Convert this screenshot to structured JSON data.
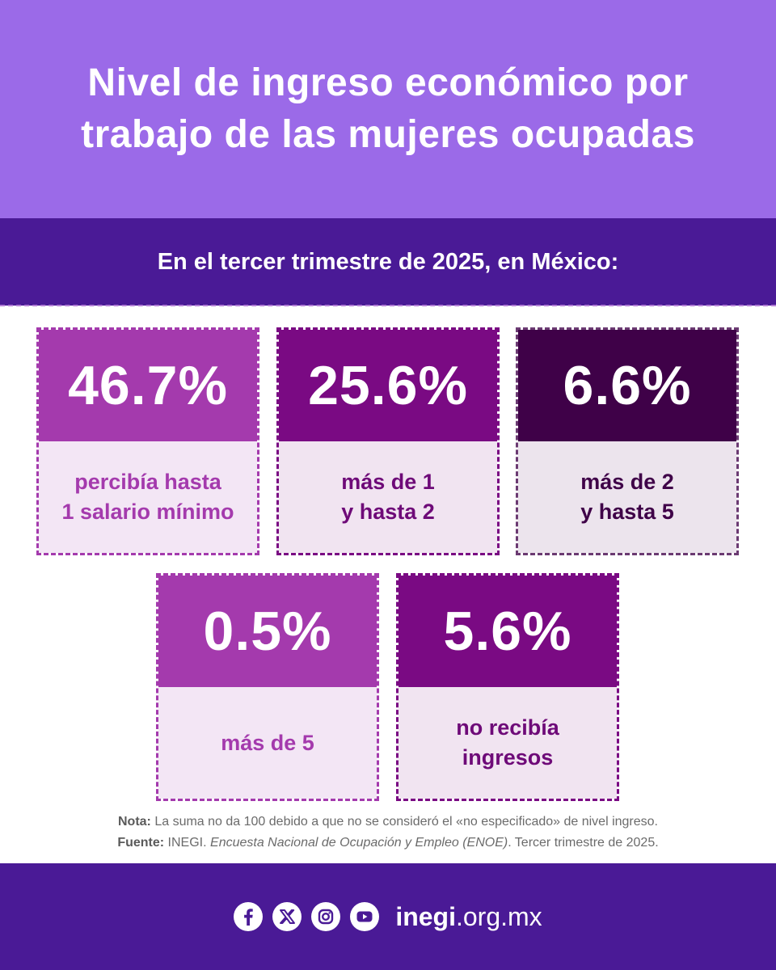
{
  "header": {
    "title": "Nivel de ingreso económico por trabajo de las mujeres ocupadas"
  },
  "subheader": {
    "text": "En el tercer trimestre de 2025, en México:"
  },
  "cards": [
    {
      "percent": "46.7%",
      "label": "percibía hasta\n1 salario mínimo"
    },
    {
      "percent": "25.6%",
      "label": "más de 1\ny hasta 2"
    },
    {
      "percent": "6.6%",
      "label": "más de 2\ny hasta 5"
    },
    {
      "percent": "0.5%",
      "label": "más de 5"
    },
    {
      "percent": "5.6%",
      "label": "no recibía\ningresos"
    }
  ],
  "notes": {
    "nota_label": "Nota:",
    "nota_text": " La suma no da 100 debido a que no se consideró el «no especificado» de nivel ingreso.",
    "fuente_label": "Fuente:",
    "fuente_text1": " INEGI. ",
    "fuente_italic": "Encuesta Nacional de Ocupación y Empleo (ENOE)",
    "fuente_text2": ". Tercer trimestre de 2025."
  },
  "footer": {
    "social_icons": [
      "facebook-icon",
      "x-icon",
      "instagram-icon",
      "youtube-icon"
    ],
    "site_bold": "inegi",
    "site_rest": ".org.mx"
  },
  "colors": {
    "header_bg": "#9b6ae8",
    "band_bg": "#4a1a96",
    "magenta": "#a43aad",
    "purple": "#7a0a83",
    "dark_purple": "#3f0148"
  }
}
